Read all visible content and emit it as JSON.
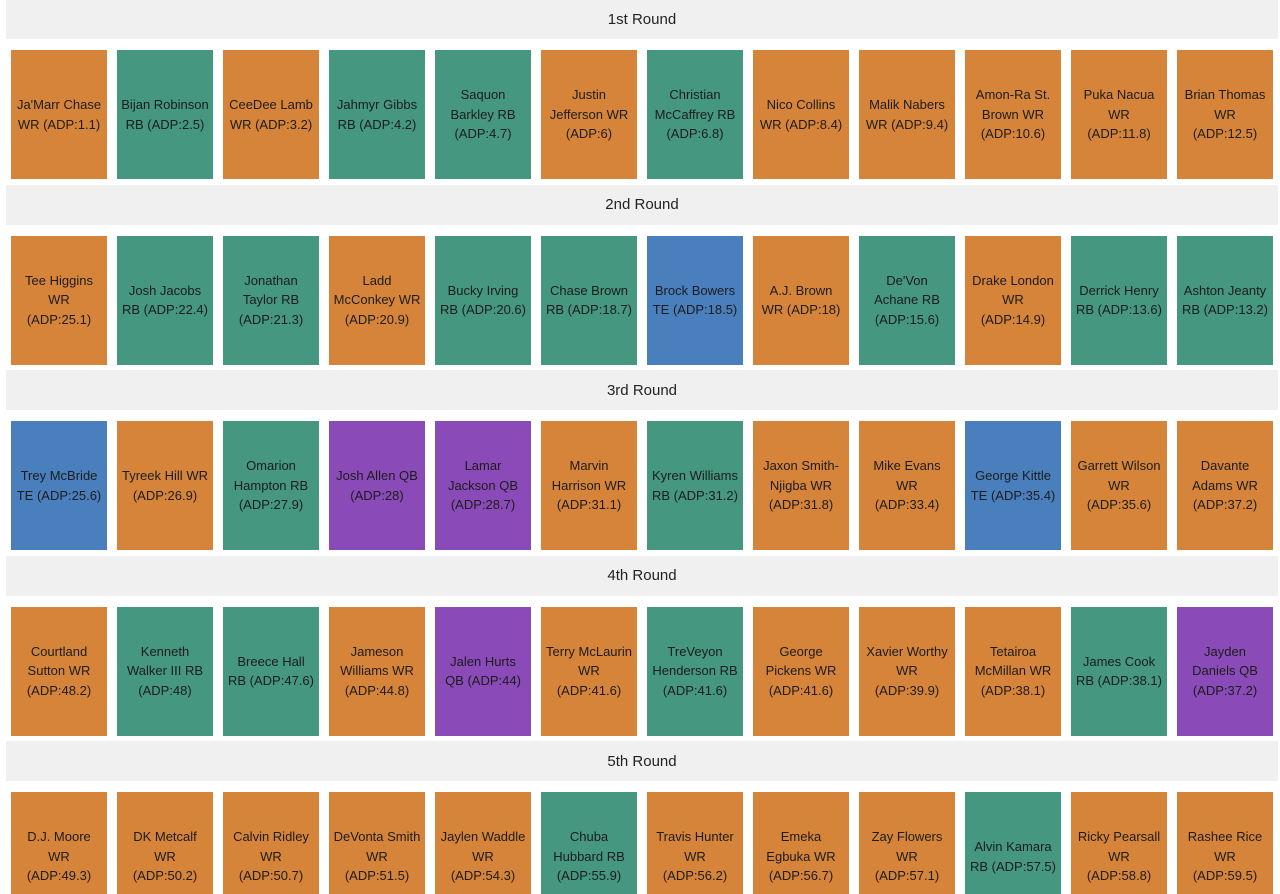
{
  "colors": {
    "WR": "#d6843a",
    "RB": "#45977f",
    "TE": "#4a7fbd",
    "QB": "#8a4bb8"
  },
  "rounds": [
    {
      "label": "1st Round",
      "picks": [
        {
          "player": "Ja'Marr Chase",
          "pos": "WR",
          "adp_text": "WR (ADP:1.1)"
        },
        {
          "player": "Bijan Robinson",
          "pos": "RB",
          "adp_text": "RB (ADP:2.5)"
        },
        {
          "player": "CeeDee Lamb",
          "pos": "WR",
          "adp_text": "WR (ADP:3.2)"
        },
        {
          "player": "Jahmyr Gibbs",
          "pos": "RB",
          "adp_text": "RB (ADP:4.2)"
        },
        {
          "player": "Saquon Barkley",
          "pos": "RB",
          "adp_text": "RB (ADP:4.7)"
        },
        {
          "player": "Justin Jefferson",
          "pos": "WR",
          "adp_text": "WR (ADP:6)"
        },
        {
          "player": "Christian McCaffrey",
          "pos": "RB",
          "adp_text": "RB (ADP:6.8)"
        },
        {
          "player": "Nico Collins",
          "pos": "WR",
          "adp_text": "WR (ADP:8.4)"
        },
        {
          "player": "Malik Nabers",
          "pos": "WR",
          "adp_text": "WR (ADP:9.4)"
        },
        {
          "player": "Amon-Ra St. Brown",
          "pos": "WR",
          "adp_text": "WR (ADP:10.6)"
        },
        {
          "player": "Puka Nacua",
          "pos": "WR",
          "adp_text": "WR (ADP:11.8)"
        },
        {
          "player": "Brian Thomas",
          "pos": "WR",
          "adp_text": "WR (ADP:12.5)"
        }
      ]
    },
    {
      "label": "2nd Round",
      "picks": [
        {
          "player": "Tee Higgins",
          "pos": "WR",
          "adp_text": "WR (ADP:25.1)"
        },
        {
          "player": "Josh Jacobs",
          "pos": "RB",
          "adp_text": "RB (ADP:22.4)"
        },
        {
          "player": "Jonathan Taylor",
          "pos": "RB",
          "adp_text": "RB (ADP:21.3)"
        },
        {
          "player": "Ladd McConkey",
          "pos": "WR",
          "adp_text": "WR (ADP:20.9)"
        },
        {
          "player": "Bucky Irving",
          "pos": "RB",
          "adp_text": "RB (ADP:20.6)"
        },
        {
          "player": "Chase Brown",
          "pos": "RB",
          "adp_text": "RB (ADP:18.7)"
        },
        {
          "player": "Brock Bowers",
          "pos": "TE",
          "adp_text": "TE (ADP:18.5)"
        },
        {
          "player": "A.J. Brown",
          "pos": "WR",
          "adp_text": "WR (ADP:18)"
        },
        {
          "player": "De'Von Achane",
          "pos": "RB",
          "adp_text": "RB (ADP:15.6)"
        },
        {
          "player": "Drake London",
          "pos": "WR",
          "adp_text": "WR (ADP:14.9)"
        },
        {
          "player": "Derrick Henry",
          "pos": "RB",
          "adp_text": "RB (ADP:13.6)"
        },
        {
          "player": "Ashton Jeanty",
          "pos": "RB",
          "adp_text": "RB (ADP:13.2)"
        }
      ]
    },
    {
      "label": "3rd Round",
      "picks": [
        {
          "player": "Trey McBride",
          "pos": "TE",
          "adp_text": "TE (ADP:25.6)"
        },
        {
          "player": "Tyreek Hill",
          "pos": "WR",
          "adp_text": "WR (ADP:26.9)"
        },
        {
          "player": "Omarion Hampton",
          "pos": "RB",
          "adp_text": "RB (ADP:27.9)"
        },
        {
          "player": "Josh Allen",
          "pos": "QB",
          "adp_text": "QB (ADP:28)"
        },
        {
          "player": "Lamar Jackson",
          "pos": "QB",
          "adp_text": "QB (ADP:28.7)"
        },
        {
          "player": "Marvin Harrison",
          "pos": "WR",
          "adp_text": "WR (ADP:31.1)"
        },
        {
          "player": "Kyren Williams",
          "pos": "RB",
          "adp_text": "RB (ADP:31.2)"
        },
        {
          "player": "Jaxon Smith-Njigba",
          "pos": "WR",
          "adp_text": "WR (ADP:31.8)"
        },
        {
          "player": "Mike Evans",
          "pos": "WR",
          "adp_text": "WR (ADP:33.4)"
        },
        {
          "player": "George Kittle",
          "pos": "TE",
          "adp_text": "TE (ADP:35.4)"
        },
        {
          "player": "Garrett Wilson",
          "pos": "WR",
          "adp_text": "WR (ADP:35.6)"
        },
        {
          "player": "Davante Adams",
          "pos": "WR",
          "adp_text": "WR (ADP:37.2)"
        }
      ]
    },
    {
      "label": "4th Round",
      "picks": [
        {
          "player": "Courtland Sutton",
          "pos": "WR",
          "adp_text": "WR (ADP:48.2)"
        },
        {
          "player": "Kenneth Walker III",
          "pos": "RB",
          "adp_text": "RB (ADP:48)"
        },
        {
          "player": "Breece Hall",
          "pos": "RB",
          "adp_text": "RB (ADP:47.6)"
        },
        {
          "player": "Jameson Williams",
          "pos": "WR",
          "adp_text": "WR (ADP:44.8)"
        },
        {
          "player": "Jalen Hurts",
          "pos": "QB",
          "adp_text": "QB (ADP:44)"
        },
        {
          "player": "Terry McLaurin",
          "pos": "WR",
          "adp_text": "WR (ADP:41.6)"
        },
        {
          "player": "TreVeyon Henderson",
          "pos": "RB",
          "adp_text": "RB (ADP:41.6)"
        },
        {
          "player": "George Pickens",
          "pos": "WR",
          "adp_text": "WR (ADP:41.6)"
        },
        {
          "player": "Xavier Worthy",
          "pos": "WR",
          "adp_text": "WR (ADP:39.9)"
        },
        {
          "player": "Tetairoa McMillan",
          "pos": "WR",
          "adp_text": "WR (ADP:38.1)"
        },
        {
          "player": "James Cook",
          "pos": "RB",
          "adp_text": "RB (ADP:38.1)"
        },
        {
          "player": "Jayden Daniels",
          "pos": "QB",
          "adp_text": "QB (ADP:37.2)"
        }
      ]
    },
    {
      "label": "5th Round",
      "picks": [
        {
          "player": "D.J. Moore",
          "pos": "WR",
          "adp_text": "WR (ADP:49.3)"
        },
        {
          "player": "DK Metcalf",
          "pos": "WR",
          "adp_text": "WR (ADP:50.2)"
        },
        {
          "player": "Calvin Ridley",
          "pos": "WR",
          "adp_text": "WR (ADP:50.7)"
        },
        {
          "player": "DeVonta Smith",
          "pos": "WR",
          "adp_text": "WR (ADP:51.5)"
        },
        {
          "player": "Jaylen Waddle",
          "pos": "WR",
          "adp_text": "WR (ADP:54.3)"
        },
        {
          "player": "Chuba Hubbard",
          "pos": "RB",
          "adp_text": "RB (ADP:55.9)"
        },
        {
          "player": "Travis Hunter",
          "pos": "WR",
          "adp_text": "WR (ADP:56.2)"
        },
        {
          "player": "Emeka Egbuka",
          "pos": "WR",
          "adp_text": "WR (ADP:56.7)"
        },
        {
          "player": "Zay Flowers",
          "pos": "WR",
          "adp_text": "WR (ADP:57.1)"
        },
        {
          "player": "Alvin Kamara",
          "pos": "RB",
          "adp_text": "RB (ADP:57.5)"
        },
        {
          "player": "Ricky Pearsall",
          "pos": "WR",
          "adp_text": "WR (ADP:58.8)"
        },
        {
          "player": "Rashee Rice",
          "pos": "WR",
          "adp_text": "WR (ADP:59.5)"
        }
      ]
    }
  ]
}
